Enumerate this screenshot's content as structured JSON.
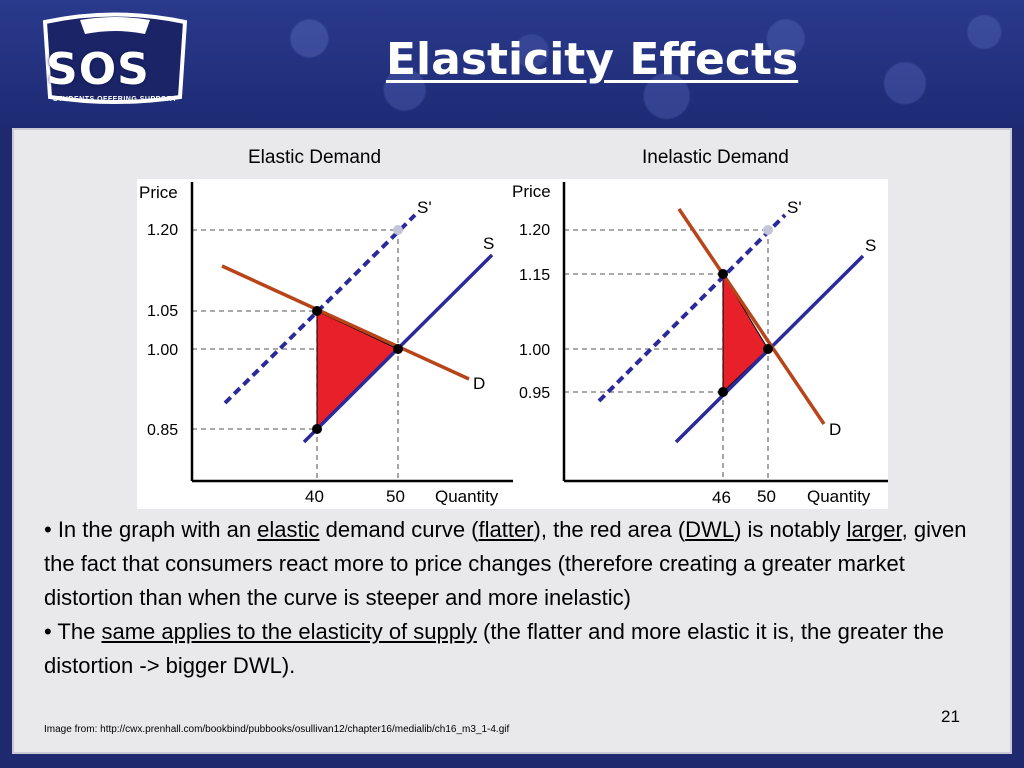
{
  "slide": {
    "title": "Elasticity Effects",
    "logo_text": "SOS",
    "logo_subtitle": "STUDENTS OFFERING SUPPORT",
    "page_number": "21",
    "footnote": "Image from: http://cwx.prenhall.com/bookbind/pubbooks/osullivan12/chapter16/medialib/ch16_m3_1-4.gif"
  },
  "graphs": {
    "elastic": {
      "title": "Elastic Demand",
      "y_axis_label": "Price",
      "x_axis_label": "Quantity",
      "price_ticks": [
        "1.20",
        "1.05",
        "1.00",
        "0.85"
      ],
      "quantity_ticks": [
        "40",
        "50"
      ],
      "supply_label": "S",
      "shifted_supply_label": "S'",
      "demand_label": "D"
    },
    "inelastic": {
      "title": "Inelastic Demand",
      "y_axis_label": "Price",
      "x_axis_label": "Quantity",
      "price_ticks": [
        "1.20",
        "1.15",
        "1.00",
        "0.95"
      ],
      "quantity_ticks": [
        "46",
        "50"
      ],
      "supply_label": "S",
      "shifted_supply_label": "S'",
      "demand_label": "D"
    }
  },
  "bullets": {
    "b1_prefix": "• In the graph with an ",
    "b1_link1": "elastic",
    "b1_mid1": " demand curve (",
    "b1_link2": "flatter",
    "b1_mid2": "), the red area (",
    "b1_link3": "DWL",
    "b1_mid3": ") is notably ",
    "b1_link4": "larger",
    "b1_suffix": ", given the fact that consumers react more to price changes (therefore creating a greater market distortion than when the curve is steeper and more inelastic)",
    "b2_prefix": "• The ",
    "b2_link": "same applies to the elasticity of supply",
    "b2_suffix": " (the flatter and more elastic it is, the greater the distortion -> bigger DWL)."
  },
  "colors": {
    "demand": "#b8441a",
    "supply": "#2a2a9a",
    "dwl": "#e8202a",
    "header": "#1f2a6e"
  }
}
